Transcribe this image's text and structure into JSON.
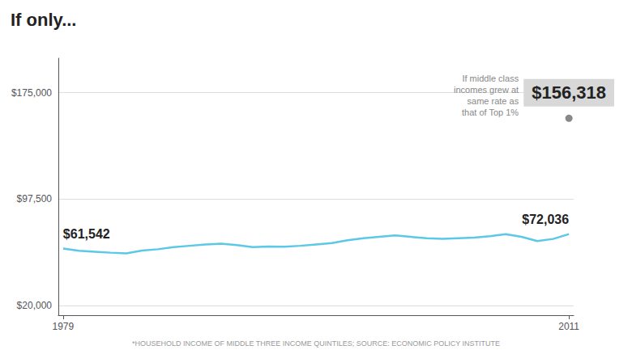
{
  "chart_data": {
    "type": "line",
    "title": "If only...",
    "subtitle": "*HOUSEHOLD INCOME OF MIDDLE THREE INCOME QUINTILES; SOURCE: ECONOMIC POLICY INSTITUTE",
    "x": [
      1979,
      1980,
      1981,
      1982,
      1983,
      1984,
      1985,
      1986,
      1987,
      1988,
      1989,
      1990,
      1991,
      1992,
      1993,
      1994,
      1995,
      1996,
      1997,
      1998,
      1999,
      2000,
      2001,
      2002,
      2003,
      2004,
      2005,
      2006,
      2007,
      2008,
      2009,
      2010,
      2011
    ],
    "values": [
      61542,
      59900,
      59200,
      58500,
      58000,
      60000,
      61000,
      62500,
      63500,
      64500,
      65000,
      64000,
      62500,
      63000,
      62800,
      63500,
      64500,
      65500,
      67500,
      69000,
      70000,
      71000,
      70000,
      69000,
      68500,
      69000,
      69500,
      70500,
      72000,
      70000,
      67000,
      68500,
      72036
    ],
    "color": "#5bc8e8",
    "xlim": [
      1978.7,
      2011.3
    ],
    "xticks": [
      1979,
      2011
    ],
    "ylim": [
      13000,
      200000
    ],
    "yticks": [
      {
        "value": 20000,
        "label": "$20,000"
      },
      {
        "value": 97500,
        "label": "$97,500"
      },
      {
        "value": 175000,
        "label": "$175,000"
      }
    ],
    "grid": true,
    "annotations": [
      {
        "x": 1979,
        "y": 61542,
        "label": "$61,542"
      },
      {
        "x": 2011,
        "y": 72036,
        "label": "$72,036"
      },
      {
        "x": 2011,
        "y": 156318,
        "label": "$156,318",
        "text": "If middle class\nincomes grew at\nsame rate as\nthat of Top 1%",
        "color": "#888888"
      }
    ]
  }
}
